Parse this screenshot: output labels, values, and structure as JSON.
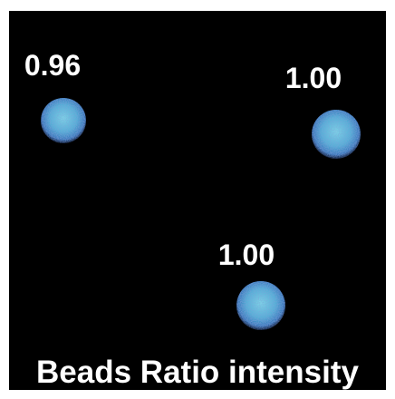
{
  "beads": [
    {
      "label": "0.96"
    },
    {
      "label": "1.00"
    },
    {
      "label": "1.00"
    }
  ],
  "caption": "Beads Ratio intensity"
}
